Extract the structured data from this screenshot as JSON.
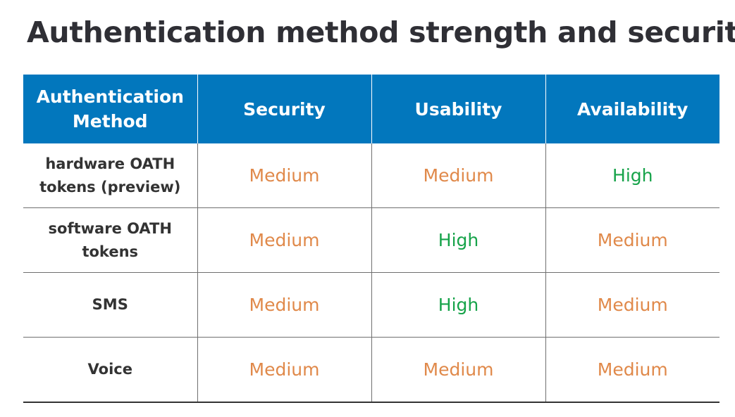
{
  "title": "Authentication method strength and security",
  "colors": {
    "header_bg": "#0277bd",
    "header_text": "#ffffff",
    "medium": "#e0894a",
    "high": "#17a34a"
  },
  "table": {
    "headers": [
      "Authentication Method",
      "Security",
      "Usability",
      "Availability"
    ],
    "rows": [
      {
        "method": "hardware OATH tokens (preview)",
        "security": "Medium",
        "usability": "Medium",
        "availability": "High"
      },
      {
        "method": "software OATH tokens",
        "security": "Medium",
        "usability": "High",
        "availability": "Medium"
      },
      {
        "method": "SMS",
        "security": "Medium",
        "usability": "High",
        "availability": "Medium"
      },
      {
        "method": "Voice",
        "security": "Medium",
        "usability": "Medium",
        "availability": "Medium"
      }
    ]
  }
}
